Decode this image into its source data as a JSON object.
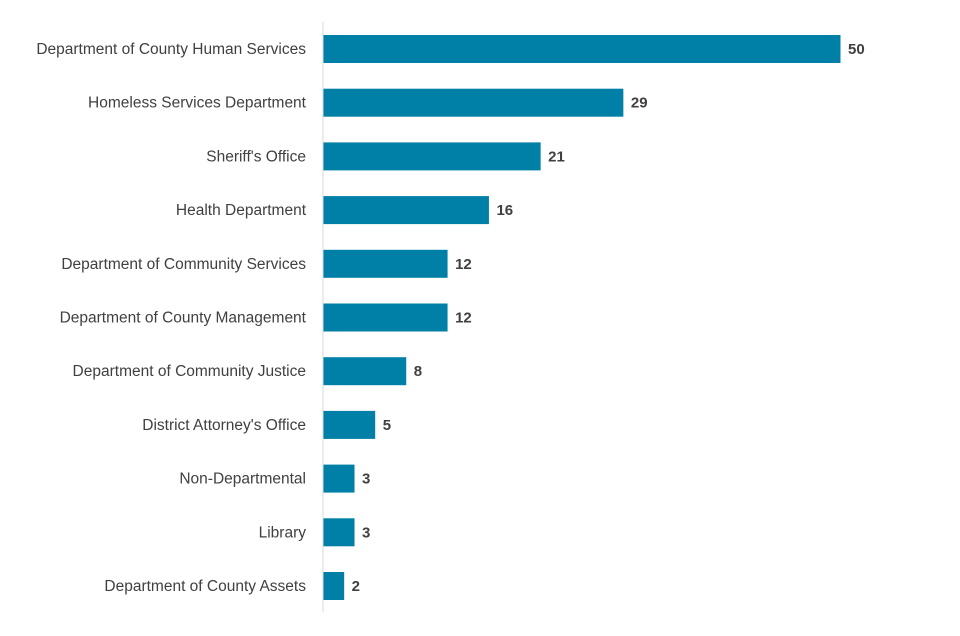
{
  "chart_data": {
    "type": "bar",
    "orientation": "horizontal",
    "categories": [
      "Department of County Human Services",
      "Homeless Services Department",
      "Sheriff's Office",
      "Health Department",
      "Department of Community Services",
      "Department of County Management",
      "Department of Community Justice",
      "District Attorney's Office",
      "Non-Departmental",
      "Library",
      "Department of County Assets"
    ],
    "values": [
      50,
      29,
      21,
      16,
      12,
      12,
      8,
      5,
      3,
      3,
      2
    ],
    "xlim": [
      0,
      50
    ],
    "grid": false,
    "data_labels": true,
    "bar_color": "#0080A6"
  }
}
